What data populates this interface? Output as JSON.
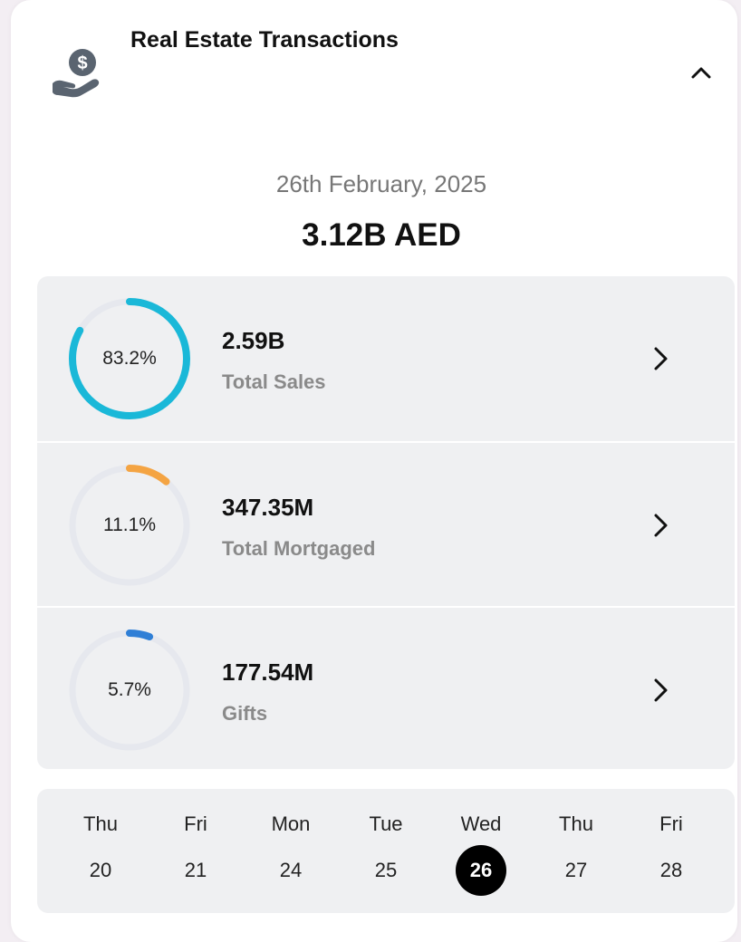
{
  "header": {
    "title": "Real Estate Transactions",
    "icon": "hand-dollar-icon",
    "collapse_icon": "chevron-up-icon"
  },
  "summary": {
    "date": "26th February, 2025",
    "total": "3.12B AED"
  },
  "metrics": [
    {
      "percent_label": "83.2%",
      "percent": 83.2,
      "value": "2.59B",
      "label": "Total Sales",
      "color": "#1ab8d8"
    },
    {
      "percent_label": "11.1%",
      "percent": 11.1,
      "value": "347.35M",
      "label": "Total Mortgaged",
      "color": "#f4a443"
    },
    {
      "percent_label": "5.7%",
      "percent": 5.7,
      "value": "177.54M",
      "label": "Gifts",
      "color": "#2f7fd6"
    }
  ],
  "calendar": {
    "days": [
      {
        "name": "Thu",
        "num": "20"
      },
      {
        "name": "Fri",
        "num": "21"
      },
      {
        "name": "Mon",
        "num": "24"
      },
      {
        "name": "Tue",
        "num": "25"
      },
      {
        "name": "Wed",
        "num": "26",
        "selected": true
      },
      {
        "name": "Thu",
        "num": "27"
      },
      {
        "name": "Fri",
        "num": "28"
      }
    ]
  },
  "colors": {
    "track": "#e6e8ee",
    "panel": "#eff0f2",
    "icon": "#5a6470"
  }
}
